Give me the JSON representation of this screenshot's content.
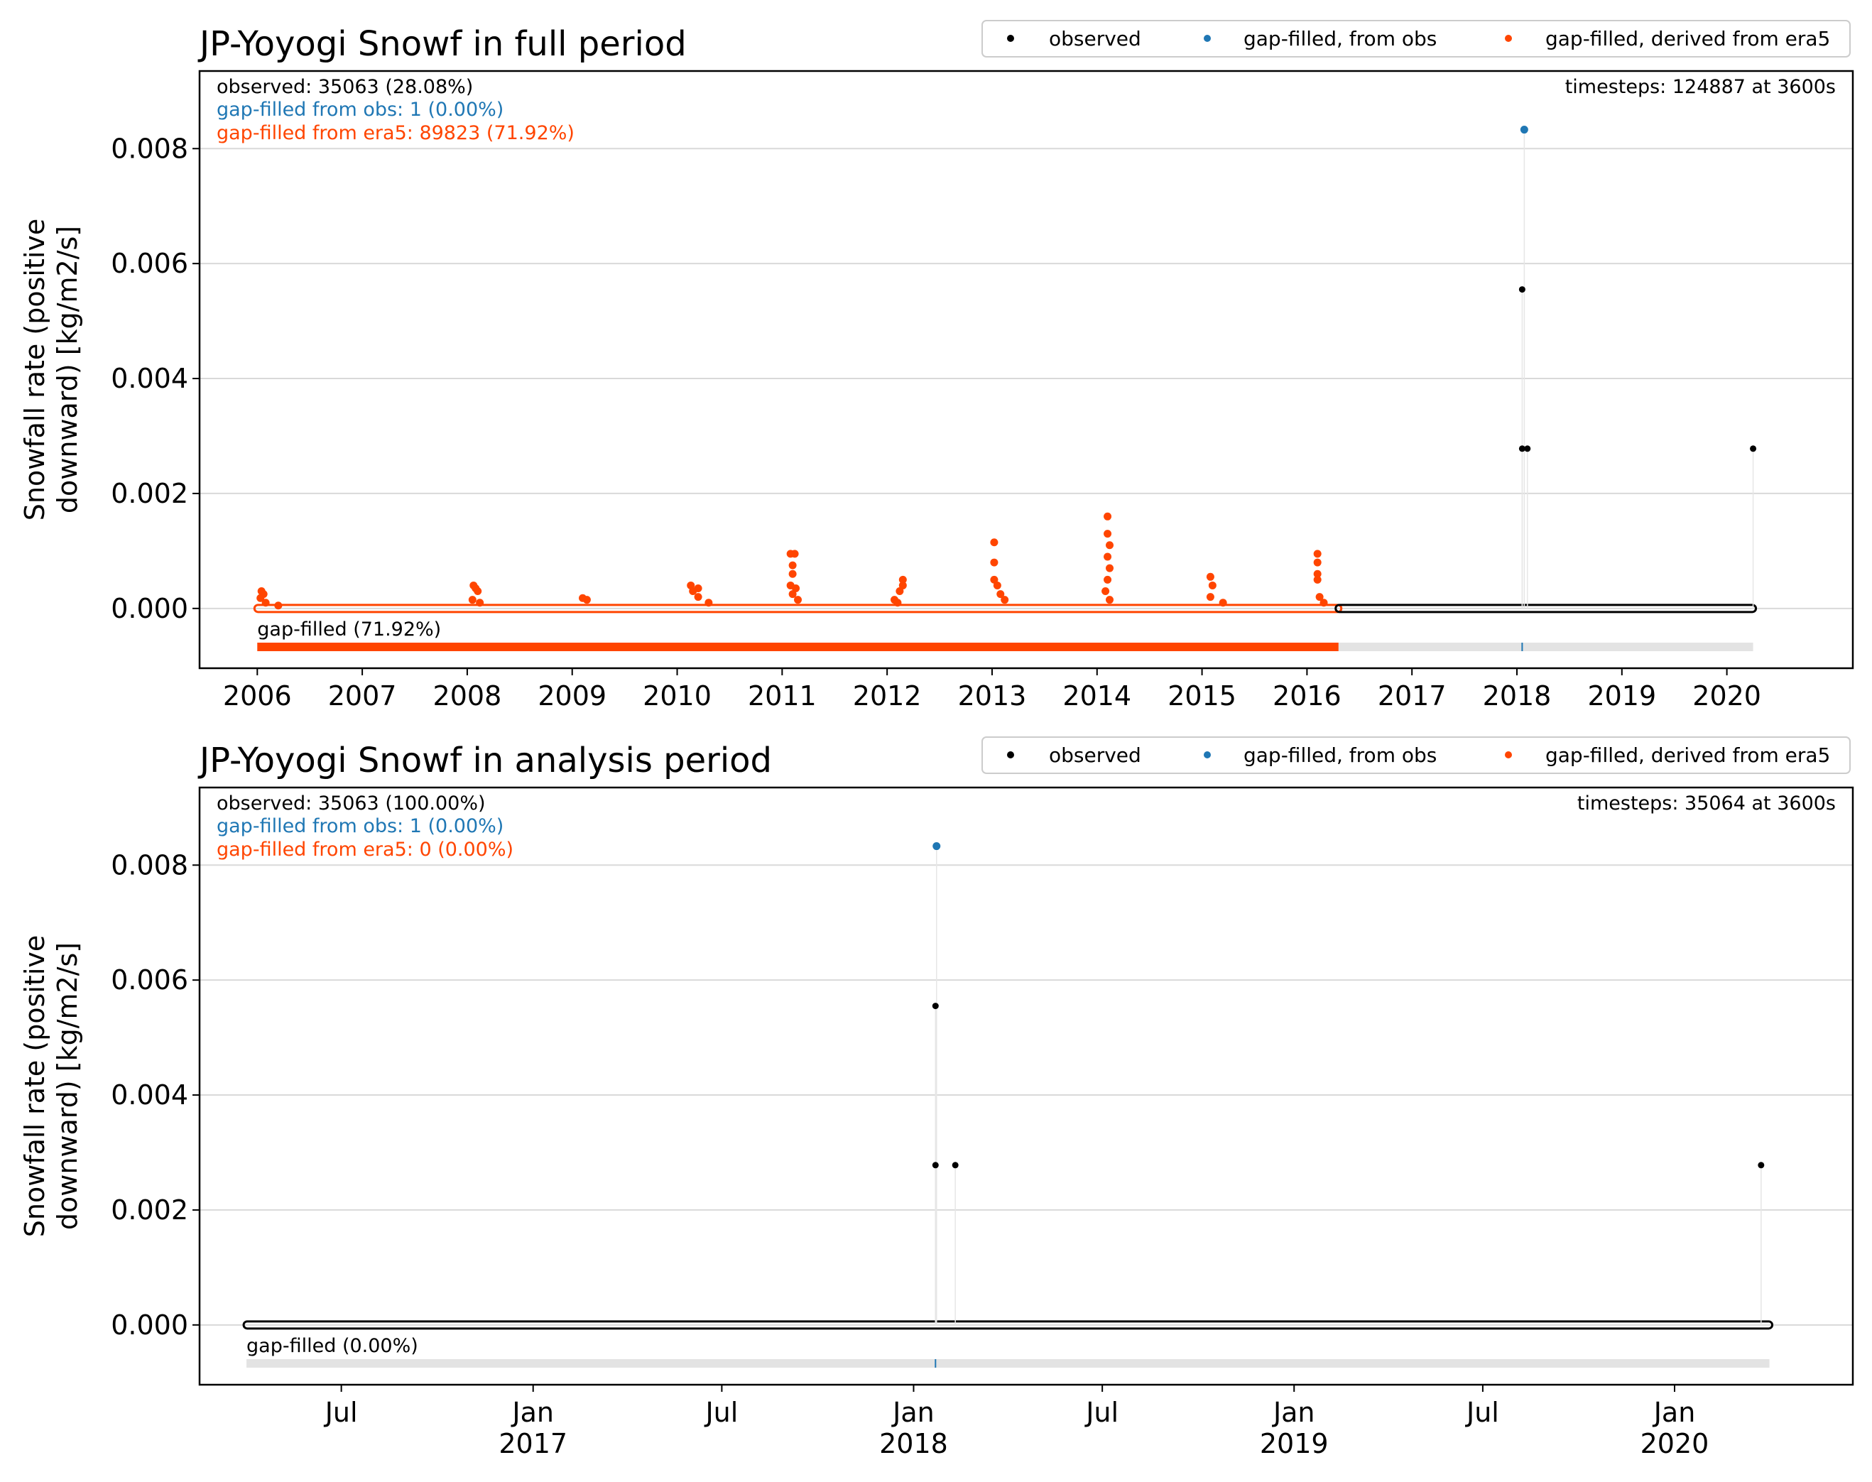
{
  "chart_data": [
    {
      "type": "scatter",
      "title": "JP-Yoyogi Snowf in full period",
      "ylabel": "Snowfall rate (positive downward) [kg/m2/s]",
      "ylabel_lines": [
        "Snowfall rate (positive",
        "downward) [kg/m2/s]"
      ],
      "ylim": [
        -0.00104,
        0.00935
      ],
      "xlim": [
        2005.45,
        2021.2
      ],
      "yticks": [
        0.008,
        0.006,
        0.004,
        0.002,
        0.0
      ],
      "ytick_labels": [
        "0.008",
        "0.006",
        "0.004",
        "0.002",
        "0.000"
      ],
      "xticks": [
        2006,
        2007,
        2008,
        2009,
        2010,
        2011,
        2012,
        2013,
        2014,
        2015,
        2016,
        2017,
        2018,
        2019,
        2020
      ],
      "xtick_labels": [
        "2006",
        "2007",
        "2008",
        "2009",
        "2010",
        "2011",
        "2012",
        "2013",
        "2014",
        "2015",
        "2016",
        "2017",
        "2018",
        "2019",
        "2020"
      ],
      "grid": "horizontal",
      "legend_location": "top-right",
      "stats": {
        "observed": "observed: 35063 (28.08%)",
        "gapfilled_obs": "gap-filled from obs: 1 (0.00%)",
        "gapfilled_era5": "gap-filled from era5: 89823 (71.92%)",
        "timesteps": "timesteps: 124887 at 3600s"
      },
      "gap_label": "gap-filled (71.92%)",
      "gap_bar": {
        "era5_range": [
          2006.0,
          2016.3
        ],
        "obs_marker": 2018.05,
        "full_range": [
          2006.0,
          2020.25
        ]
      },
      "baseline_segments": [
        {
          "series": "gap-filled, derived from era5",
          "x": [
            2006.0,
            2016.3
          ]
        },
        {
          "series": "observed",
          "x": [
            2016.3,
            2020.25
          ]
        }
      ],
      "series": [
        {
          "name": "observed",
          "color": "#000000",
          "points": [
            [
              2018.05,
              0.00555
            ],
            [
              2018.05,
              0.00278
            ],
            [
              2018.1,
              0.00278
            ],
            [
              2020.25,
              0.00278
            ]
          ]
        },
        {
          "name": "gap-filled, from obs",
          "color": "#1f77b4",
          "points": [
            [
              2018.07,
              0.00833
            ]
          ]
        },
        {
          "name": "gap-filled, derived from era5",
          "color": "#ff4500",
          "points": [
            [
              2006.04,
              0.0003
            ],
            [
              2006.06,
              0.00025
            ],
            [
              2006.03,
              0.00018
            ],
            [
              2006.08,
              0.0001
            ],
            [
              2006.2,
              5e-05
            ],
            [
              2008.06,
              0.0004
            ],
            [
              2008.08,
              0.00035
            ],
            [
              2008.1,
              0.0003
            ],
            [
              2008.05,
              0.00015
            ],
            [
              2008.12,
              0.0001
            ],
            [
              2009.1,
              0.00018
            ],
            [
              2009.14,
              0.00015
            ],
            [
              2010.13,
              0.0004
            ],
            [
              2010.2,
              0.00035
            ],
            [
              2010.15,
              0.0003
            ],
            [
              2010.2,
              0.0002
            ],
            [
              2010.3,
              0.0001
            ],
            [
              2011.08,
              0.00095
            ],
            [
              2011.12,
              0.00095
            ],
            [
              2011.1,
              0.00075
            ],
            [
              2011.1,
              0.0006
            ],
            [
              2011.08,
              0.0004
            ],
            [
              2011.13,
              0.00035
            ],
            [
              2011.1,
              0.00025
            ],
            [
              2011.15,
              0.00015
            ],
            [
              2012.15,
              0.0005
            ],
            [
              2012.15,
              0.0004
            ],
            [
              2012.12,
              0.0003
            ],
            [
              2012.07,
              0.00015
            ],
            [
              2012.1,
              0.0001
            ],
            [
              2013.02,
              0.00115
            ],
            [
              2013.02,
              0.0008
            ],
            [
              2013.02,
              0.0005
            ],
            [
              2013.05,
              0.0004
            ],
            [
              2013.08,
              0.00025
            ],
            [
              2013.12,
              0.00015
            ],
            [
              2014.1,
              0.0016
            ],
            [
              2014.1,
              0.0013
            ],
            [
              2014.12,
              0.0011
            ],
            [
              2014.1,
              0.0009
            ],
            [
              2014.12,
              0.0007
            ],
            [
              2014.1,
              0.0005
            ],
            [
              2014.08,
              0.0003
            ],
            [
              2014.12,
              0.00015
            ],
            [
              2015.08,
              0.00055
            ],
            [
              2015.1,
              0.0004
            ],
            [
              2015.08,
              0.0002
            ],
            [
              2015.2,
              0.0001
            ],
            [
              2016.1,
              0.00095
            ],
            [
              2016.1,
              0.0008
            ],
            [
              2016.1,
              0.0006
            ],
            [
              2016.1,
              0.0005
            ],
            [
              2016.12,
              0.0002
            ],
            [
              2016.16,
              0.0001
            ]
          ]
        }
      ]
    },
    {
      "type": "scatter",
      "title": "JP-Yoyogi Snowf in analysis period",
      "ylabel": "Snowfall rate (positive downward) [kg/m2/s]",
      "ylabel_lines": [
        "Snowfall rate (positive",
        "downward) [kg/m2/s]"
      ],
      "ylim": [
        -0.00104,
        0.00935
      ],
      "xlim": [
        "2016-02-16",
        "2020-06-20"
      ],
      "yticks": [
        0.008,
        0.006,
        0.004,
        0.002,
        0.0
      ],
      "ytick_labels": [
        "0.008",
        "0.006",
        "0.004",
        "0.002",
        "0.000"
      ],
      "xticks": [
        "2016-07-01",
        "2017-01-01",
        "2017-07-01",
        "2018-01-01",
        "2018-07-01",
        "2019-01-01",
        "2019-07-01",
        "2020-01-01"
      ],
      "xtick_labels": [
        "Jul",
        "Jan\n2017",
        "Jul",
        "Jan\n2018",
        "Jul",
        "Jan\n2019",
        "Jul",
        "Jan\n2020"
      ],
      "grid": "horizontal",
      "legend_location": "top-right",
      "stats": {
        "observed": "observed: 35063 (100.00%)",
        "gapfilled_obs": "gap-filled from obs: 1 (0.00%)",
        "gapfilled_era5": "gap-filled from era5: 0 (0.00%)",
        "timesteps": "timesteps: 35064 at 3600s"
      },
      "gap_label": "gap-filled (0.00%)",
      "gap_bar": {
        "obs_marker": "2018-01-22",
        "full_range": [
          "2016-04-01",
          "2020-04-01"
        ]
      },
      "baseline_segments": [
        {
          "series": "observed",
          "x": [
            "2016-04-01",
            "2020-04-01"
          ]
        }
      ],
      "series": [
        {
          "name": "observed",
          "color": "#000000",
          "points": [
            [
              "2018-01-22",
              0.00555
            ],
            [
              "2018-01-22",
              0.00278
            ],
            [
              "2018-02-10",
              0.00278
            ],
            [
              "2020-03-24",
              0.00278
            ]
          ]
        },
        {
          "name": "gap-filled, from obs",
          "color": "#1f77b4",
          "points": [
            [
              "2018-01-23",
              0.00833
            ]
          ]
        },
        {
          "name": "gap-filled, derived from era5",
          "color": "#ff4500",
          "points": []
        }
      ]
    }
  ]
}
